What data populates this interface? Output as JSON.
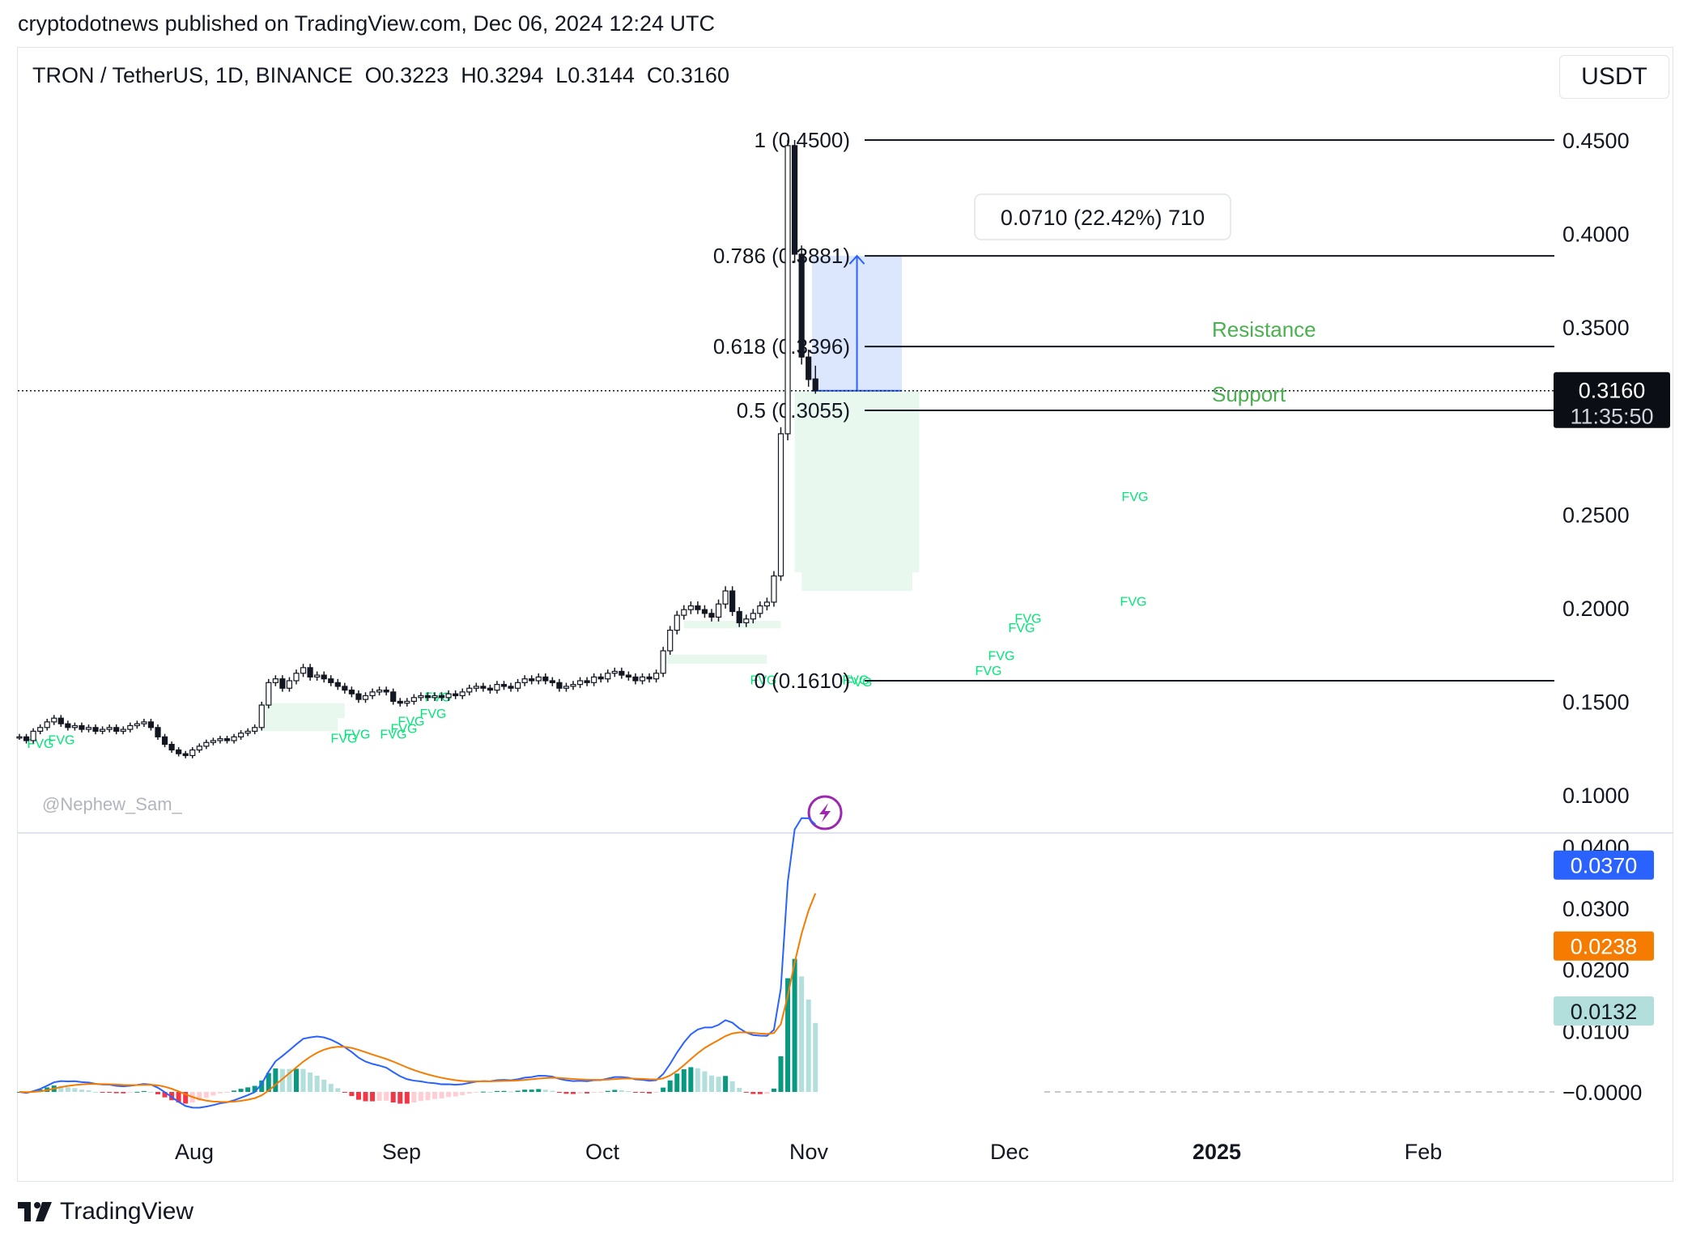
{
  "header": {
    "published": "cryptodotnews published on TradingView.com, Dec 06, 2024 12:24 UTC",
    "symbol_line": "TRON / TetherUS, 1D, BINANCE  O0.3223  H0.3294  L0.3144  C0.3160",
    "currency": "USDT"
  },
  "footer": {
    "brand": "TradingView"
  },
  "chart_data": [
    {
      "type": "candlestick",
      "title": "TRON / TetherUS, 1D, BINANCE",
      "ohlc_last": {
        "open": 0.3223,
        "high": 0.3294,
        "low": 0.3144,
        "close": 0.316
      },
      "price_axis": {
        "ticks": [
          "0.4500",
          "0.4000",
          "0.3500",
          "0.2500",
          "0.2000",
          "0.1500",
          "0.1000"
        ],
        "ylim": [
          0.08,
          0.46
        ]
      },
      "time_axis": {
        "ticks": [
          "Aug",
          "Sep",
          "Oct",
          "Nov",
          "Dec",
          "2025",
          "Feb"
        ]
      },
      "last_price": {
        "value": "0.3160",
        "countdown": "11:35:50"
      },
      "fib_levels": [
        {
          "label": "1 (0.4500)",
          "value": 0.45
        },
        {
          "label": "0.786 (0.3881)",
          "value": 0.3881
        },
        {
          "label": "0.618 (0.3396)",
          "value": 0.3396
        },
        {
          "label": "0.5 (0.3055)",
          "value": 0.3055
        },
        {
          "label": "0 (0.1610)",
          "value": 0.161
        }
      ],
      "measure_label": "0.0710 (22.42%) 710",
      "annotations": {
        "resistance": "Resistance",
        "support": "Support",
        "fvg": "FVG"
      },
      "watermark": "@Nephew_Sam_",
      "closes": [
        0.131,
        0.129,
        0.134,
        0.136,
        0.139,
        0.141,
        0.138,
        0.136,
        0.137,
        0.135,
        0.136,
        0.134,
        0.135,
        0.136,
        0.134,
        0.135,
        0.137,
        0.138,
        0.139,
        0.136,
        0.131,
        0.127,
        0.124,
        0.122,
        0.121,
        0.124,
        0.126,
        0.128,
        0.129,
        0.13,
        0.129,
        0.131,
        0.133,
        0.134,
        0.136,
        0.148,
        0.16,
        0.162,
        0.157,
        0.161,
        0.165,
        0.168,
        0.163,
        0.164,
        0.162,
        0.16,
        0.158,
        0.156,
        0.154,
        0.151,
        0.153,
        0.155,
        0.156,
        0.155,
        0.15,
        0.149,
        0.15,
        0.152,
        0.153,
        0.152,
        0.153,
        0.152,
        0.154,
        0.153,
        0.155,
        0.157,
        0.158,
        0.157,
        0.156,
        0.159,
        0.158,
        0.157,
        0.16,
        0.162,
        0.161,
        0.163,
        0.161,
        0.16,
        0.157,
        0.158,
        0.159,
        0.161,
        0.16,
        0.163,
        0.162,
        0.165,
        0.166,
        0.164,
        0.163,
        0.161,
        0.163,
        0.162,
        0.165,
        0.177,
        0.188,
        0.196,
        0.199,
        0.201,
        0.199,
        0.197,
        0.195,
        0.202,
        0.209,
        0.198,
        0.192,
        0.194,
        0.197,
        0.201,
        0.203,
        0.217,
        0.293,
        0.447,
        0.389,
        0.334,
        0.322,
        0.316
      ],
      "macd": {
        "legend": {
          "macd": "0.0370",
          "signal": "0.0238",
          "hist": "0.0132"
        },
        "ticks": [
          "0.0400",
          "0.0300",
          "0.0200",
          "0.0100",
          "−0.0000"
        ],
        "ylim": [
          -0.003,
          0.041
        ]
      },
      "colors": {
        "up": "#089981",
        "down": "#f23645",
        "macd": "#2962ff",
        "signal": "#f57c00",
        "fvg": "#00e676",
        "measure": "#2962ff"
      }
    }
  ]
}
